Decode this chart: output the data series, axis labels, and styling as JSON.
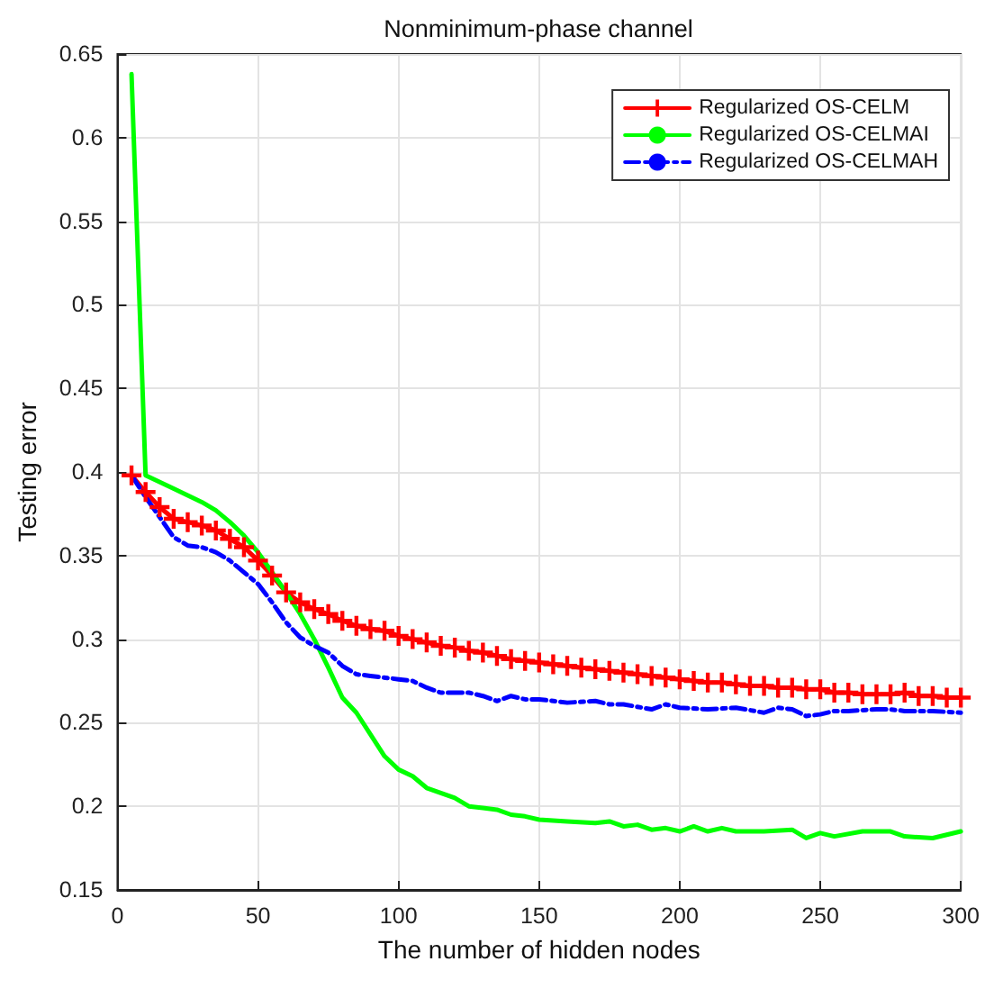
{
  "chart_data": {
    "type": "line",
    "title": "Nonminimum-phase channel",
    "xlabel": "The number of hidden nodes",
    "ylabel": "Testing error",
    "xlim": [
      0,
      300
    ],
    "xticks": [
      0,
      50,
      100,
      150,
      200,
      250,
      300
    ],
    "ylim": [
      0.15,
      0.65
    ],
    "yticks": [
      0.15,
      0.2,
      0.25,
      0.3,
      0.35,
      0.4,
      0.45,
      0.5,
      0.55,
      0.6,
      0.65
    ],
    "grid": true,
    "legend": "top right",
    "series": [
      {
        "name": "Regularized OS-CELM",
        "color": "#ff0000",
        "marker": "cross",
        "line_style": "solid",
        "x": [
          5,
          10,
          15,
          20,
          25,
          30,
          35,
          40,
          45,
          50,
          55,
          60,
          65,
          70,
          75,
          80,
          85,
          90,
          95,
          100,
          105,
          110,
          115,
          120,
          125,
          130,
          135,
          140,
          145,
          150,
          155,
          160,
          165,
          170,
          175,
          180,
          185,
          190,
          195,
          200,
          205,
          210,
          215,
          220,
          225,
          230,
          235,
          240,
          245,
          250,
          255,
          260,
          265,
          270,
          275,
          280,
          285,
          290,
          295,
          300
        ],
        "values": [
          0.398,
          0.388,
          0.379,
          0.372,
          0.37,
          0.368,
          0.365,
          0.36,
          0.355,
          0.347,
          0.338,
          0.328,
          0.322,
          0.318,
          0.315,
          0.311,
          0.308,
          0.306,
          0.305,
          0.302,
          0.3,
          0.298,
          0.296,
          0.295,
          0.293,
          0.292,
          0.29,
          0.288,
          0.287,
          0.286,
          0.285,
          0.284,
          0.283,
          0.282,
          0.281,
          0.28,
          0.279,
          0.278,
          0.277,
          0.276,
          0.275,
          0.274,
          0.274,
          0.273,
          0.272,
          0.272,
          0.271,
          0.271,
          0.27,
          0.27,
          0.268,
          0.268,
          0.267,
          0.267,
          0.267,
          0.268,
          0.266,
          0.266,
          0.265,
          0.265
        ]
      },
      {
        "name": "Regularized OS-CELMAI",
        "color": "#00ff00",
        "marker": "none",
        "line_style": "solid",
        "x": [
          5,
          10,
          20,
          30,
          35,
          40,
          45,
          50,
          55,
          60,
          65,
          70,
          75,
          80,
          85,
          90,
          95,
          100,
          105,
          110,
          115,
          120,
          125,
          130,
          135,
          140,
          145,
          150,
          160,
          170,
          175,
          180,
          185,
          190,
          195,
          200,
          205,
          210,
          215,
          220,
          230,
          240,
          245,
          250,
          255,
          265,
          275,
          280,
          290,
          300
        ],
        "values": [
          0.638,
          0.398,
          0.39,
          0.382,
          0.377,
          0.37,
          0.362,
          0.352,
          0.34,
          0.328,
          0.315,
          0.3,
          0.283,
          0.265,
          0.256,
          0.243,
          0.23,
          0.222,
          0.218,
          0.211,
          0.208,
          0.205,
          0.2,
          0.199,
          0.198,
          0.195,
          0.194,
          0.192,
          0.191,
          0.19,
          0.191,
          0.188,
          0.189,
          0.186,
          0.187,
          0.185,
          0.188,
          0.185,
          0.187,
          0.185,
          0.185,
          0.186,
          0.181,
          0.184,
          0.182,
          0.185,
          0.185,
          0.182,
          0.181,
          0.185
        ]
      },
      {
        "name": "Regularized OS-CELMAH",
        "color": "#0000ff",
        "marker": "none",
        "line_style": "dashed",
        "x": [
          5,
          10,
          15,
          20,
          25,
          30,
          35,
          40,
          45,
          50,
          55,
          60,
          65,
          70,
          75,
          80,
          85,
          90,
          100,
          105,
          110,
          115,
          120,
          125,
          130,
          135,
          140,
          145,
          150,
          160,
          170,
          175,
          180,
          190,
          195,
          200,
          210,
          220,
          230,
          235,
          240,
          245,
          250,
          255,
          260,
          270,
          275,
          280,
          290,
          300
        ],
        "values": [
          0.398,
          0.385,
          0.373,
          0.361,
          0.356,
          0.355,
          0.352,
          0.347,
          0.34,
          0.333,
          0.322,
          0.31,
          0.301,
          0.296,
          0.292,
          0.284,
          0.279,
          0.278,
          0.276,
          0.275,
          0.271,
          0.268,
          0.268,
          0.268,
          0.266,
          0.263,
          0.266,
          0.264,
          0.264,
          0.262,
          0.263,
          0.261,
          0.261,
          0.258,
          0.261,
          0.259,
          0.258,
          0.259,
          0.256,
          0.259,
          0.258,
          0.254,
          0.255,
          0.257,
          0.257,
          0.258,
          0.258,
          0.257,
          0.257,
          0.256
        ]
      }
    ]
  }
}
